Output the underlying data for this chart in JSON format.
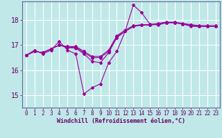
{
  "xlabel": "Windchill (Refroidissement éolien,°C)",
  "ylabel": "",
  "bg_color": "#c0e8e8",
  "grid_color": "#ffffff",
  "line_color": "#990099",
  "spine_color": "#666699",
  "tick_color": "#660066",
  "xlim": [
    -0.5,
    23.5
  ],
  "ylim": [
    14.5,
    18.75
  ],
  "yticks": [
    15,
    16,
    17,
    18
  ],
  "xticks": [
    0,
    1,
    2,
    3,
    4,
    5,
    6,
    7,
    8,
    9,
    10,
    11,
    12,
    13,
    14,
    15,
    16,
    17,
    18,
    19,
    20,
    21,
    22,
    23
  ],
  "series": [
    [
      16.6,
      16.8,
      16.65,
      16.8,
      17.15,
      16.8,
      16.65,
      15.05,
      15.3,
      15.45,
      16.3,
      16.75,
      17.55,
      18.6,
      18.3,
      17.85,
      17.8,
      17.9,
      17.9,
      17.85,
      17.75,
      17.75,
      17.75,
      17.75
    ],
    [
      16.6,
      16.75,
      16.7,
      16.85,
      17.0,
      16.9,
      16.88,
      16.65,
      16.35,
      16.3,
      16.7,
      17.3,
      17.55,
      17.75,
      17.8,
      17.8,
      17.85,
      17.9,
      17.9,
      17.85,
      17.8,
      17.75,
      17.75,
      17.75
    ],
    [
      16.6,
      16.75,
      16.7,
      16.85,
      17.0,
      16.92,
      16.92,
      16.7,
      16.5,
      16.5,
      16.75,
      17.35,
      17.55,
      17.75,
      17.8,
      17.8,
      17.85,
      17.9,
      17.9,
      17.85,
      17.8,
      17.75,
      17.75,
      17.75
    ],
    [
      16.6,
      16.75,
      16.7,
      16.85,
      17.0,
      16.95,
      16.95,
      16.75,
      16.55,
      16.55,
      16.8,
      17.38,
      17.6,
      17.78,
      17.82,
      17.82,
      17.87,
      17.92,
      17.92,
      17.87,
      17.82,
      17.78,
      17.78,
      17.78
    ]
  ]
}
